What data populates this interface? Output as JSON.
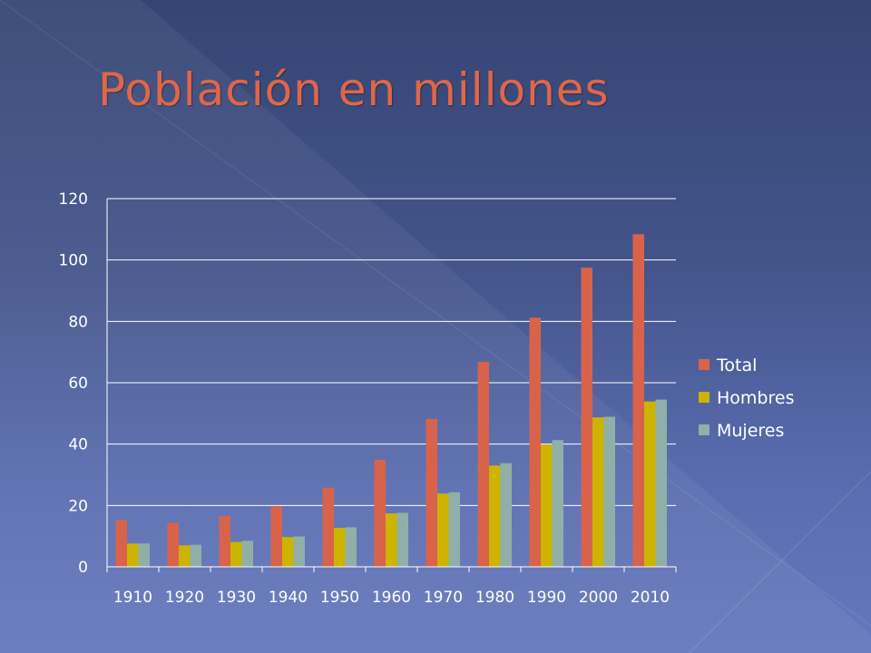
{
  "slide": {
    "title": "Población en millones"
  },
  "chart_data": {
    "type": "bar",
    "title": "",
    "xlabel": "",
    "ylabel": "",
    "categories": [
      "1910",
      "1920",
      "1930",
      "1940",
      "1950",
      "1960",
      "1970",
      "1980",
      "1990",
      "2000",
      "2010"
    ],
    "series": [
      {
        "name": "Total",
        "color": "#d9634a",
        "values": [
          15.2,
          14.3,
          16.6,
          19.7,
          25.8,
          34.9,
          48.2,
          66.8,
          81.2,
          97.5,
          108.4
        ]
      },
      {
        "name": "Hombres",
        "color": "#ccb400",
        "values": [
          7.6,
          7.0,
          8.1,
          9.7,
          12.7,
          17.4,
          23.9,
          33.0,
          39.9,
          48.7,
          53.9
        ]
      },
      {
        "name": "Mujeres",
        "color": "#8fafa8",
        "values": [
          7.6,
          7.2,
          8.5,
          9.9,
          12.9,
          17.6,
          24.3,
          33.8,
          41.3,
          48.9,
          54.5
        ]
      }
    ],
    "ylim": [
      0,
      120
    ],
    "yticks": [
      "0",
      "20",
      "40",
      "60",
      "80",
      "100",
      "120"
    ],
    "grid": true,
    "legend_position": "right"
  }
}
